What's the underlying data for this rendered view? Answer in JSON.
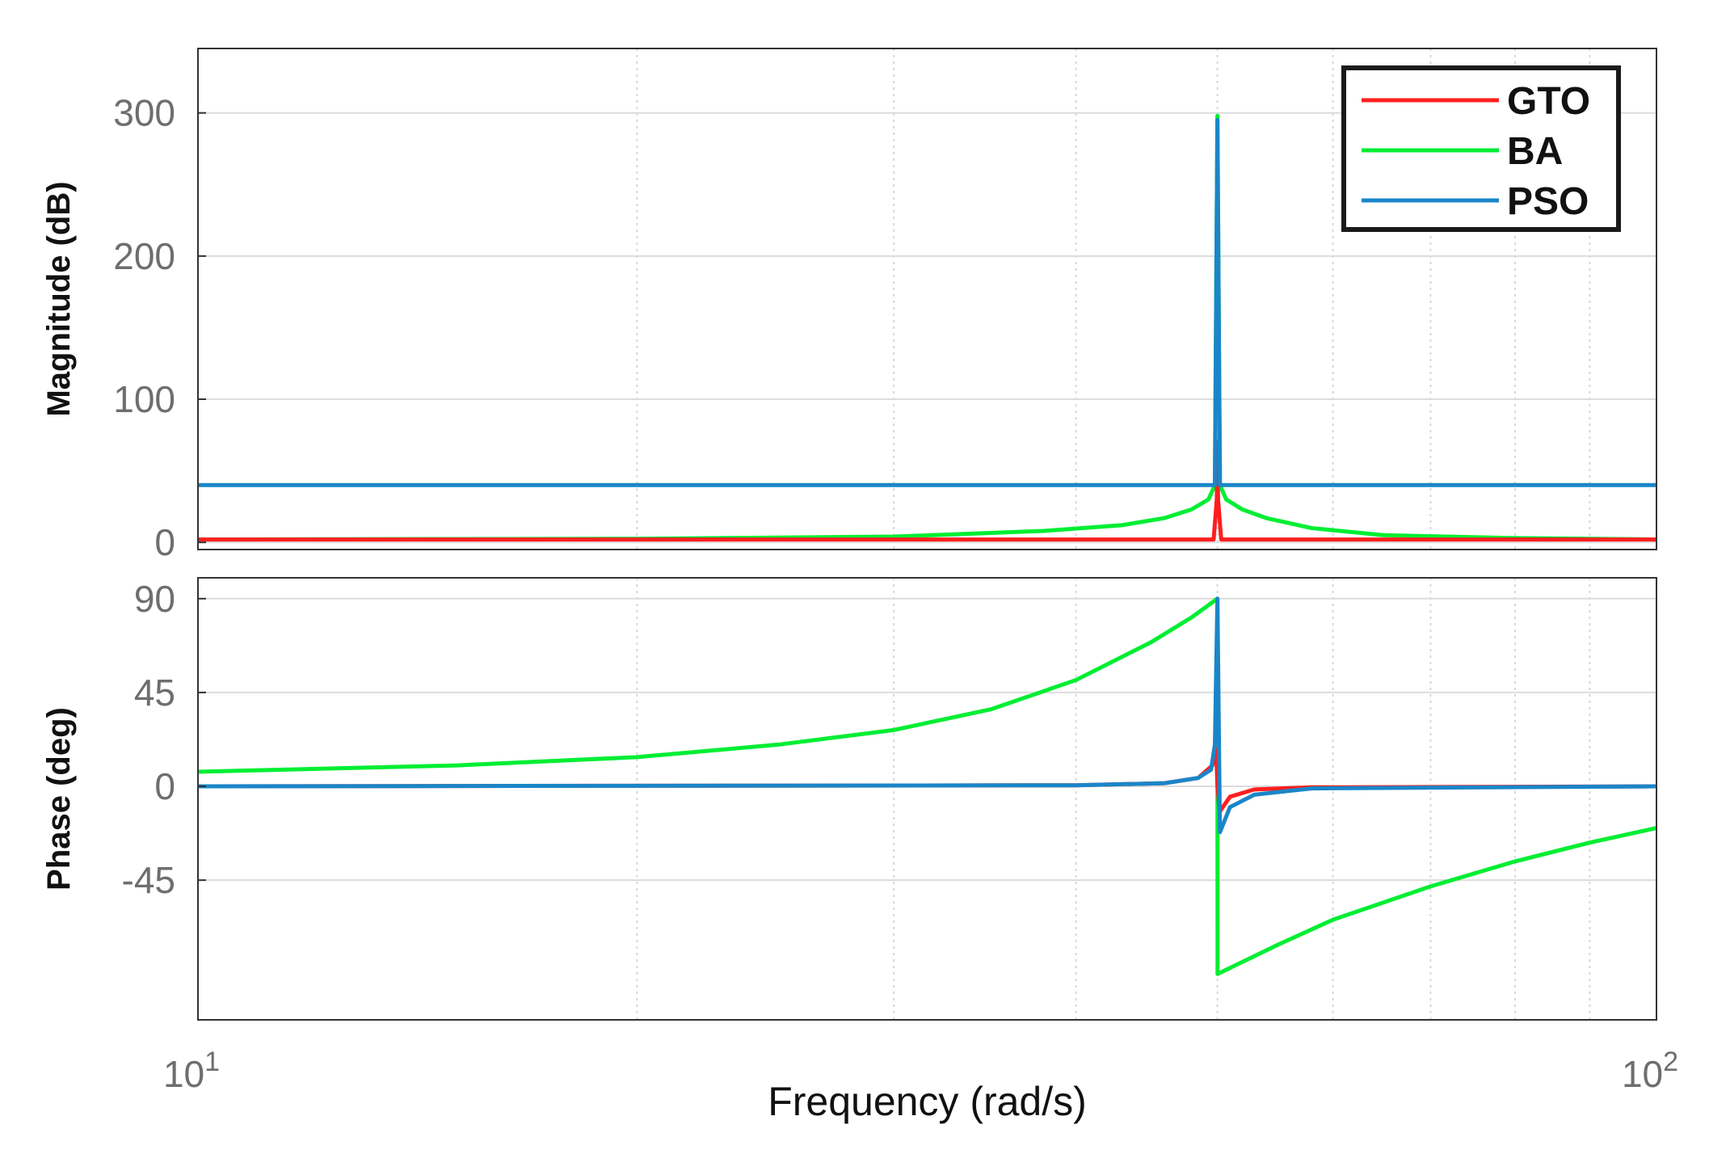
{
  "chart_data": {
    "type": "line",
    "title": "",
    "xlabel": "Frequency  (rad/s)",
    "xscale": "log",
    "xlim": [
      10,
      100
    ],
    "x_tick_labels": [
      {
        "base": "10",
        "exp": "1"
      },
      {
        "base": "10",
        "exp": "2"
      }
    ],
    "grid": true,
    "legend": {
      "placement": "top-right",
      "entries": [
        "GTO",
        "BA",
        "PSO"
      ]
    },
    "colors": {
      "GTO": "#ff1f1f",
      "BA": "#00ee33",
      "PSO": "#1a86c8"
    },
    "subplots": [
      {
        "name": "magnitude",
        "ylabel": "Magnitude (dB)",
        "ylim": [
          -5,
          345
        ],
        "yticks": [
          0,
          100,
          200,
          300
        ],
        "ytick_labels": [
          "0",
          "100",
          "200",
          "300"
        ],
        "series": [
          {
            "name": "GTO",
            "points": [
              [
                10,
                2
              ],
              [
                40,
                2
              ],
              [
                49.7,
                2
              ],
              [
                49.95,
                30
              ],
              [
                50,
                70
              ],
              [
                50.05,
                30
              ],
              [
                50.3,
                2
              ],
              [
                60,
                2
              ],
              [
                100,
                2
              ]
            ]
          },
          {
            "name": "BA",
            "points": [
              [
                10,
                2
              ],
              [
                20,
                2.5
              ],
              [
                30,
                4
              ],
              [
                38,
                8
              ],
              [
                43,
                12
              ],
              [
                46,
                17
              ],
              [
                48,
                23
              ],
              [
                49.3,
                30
              ],
              [
                49.8,
                40
              ],
              [
                50,
                298
              ],
              [
                50.2,
                40
              ],
              [
                50.7,
                30
              ],
              [
                52,
                23
              ],
              [
                54,
                17
              ],
              [
                58,
                10
              ],
              [
                65,
                5
              ],
              [
                80,
                3
              ],
              [
                100,
                2
              ]
            ]
          },
          {
            "name": "PSO",
            "points": [
              [
                10,
                40
              ],
              [
                49.8,
                40
              ],
              [
                50,
                295
              ],
              [
                50.2,
                40
              ],
              [
                100,
                40
              ]
            ]
          }
        ]
      },
      {
        "name": "phase",
        "ylabel": "Phase (deg)",
        "ylim": [
          -112,
          100
        ],
        "yticks": [
          90,
          45,
          0,
          -45
        ],
        "ytick_labels": [
          "90",
          "45",
          "0",
          "-45"
        ],
        "series": [
          {
            "name": "GTO",
            "points": [
              [
                10,
                0
              ],
              [
                40,
                0.5
              ],
              [
                46,
                1.5
              ],
              [
                48.5,
                4
              ],
              [
                49.6,
                10
              ],
              [
                49.9,
                18
              ],
              [
                50,
                0
              ],
              [
                50.2,
                -12
              ],
              [
                51,
                -5
              ],
              [
                53,
                -1.5
              ],
              [
                58,
                -0.5
              ],
              [
                100,
                0
              ]
            ]
          },
          {
            "name": "BA",
            "points": [
              [
                10,
                7
              ],
              [
                15,
                10
              ],
              [
                20,
                14
              ],
              [
                25,
                20
              ],
              [
                30,
                27
              ],
              [
                35,
                37
              ],
              [
                40,
                51
              ],
              [
                45,
                69
              ],
              [
                48,
                81
              ],
              [
                50,
                90
              ],
              [
                50.01,
                -90
              ],
              [
                55,
                -76
              ],
              [
                60,
                -64
              ],
              [
                70,
                -48
              ],
              [
                80,
                -36
              ],
              [
                90,
                -27
              ],
              [
                100,
                -20
              ]
            ]
          },
          {
            "name": "PSO",
            "points": [
              [
                10,
                0
              ],
              [
                40,
                0.5
              ],
              [
                46,
                1.5
              ],
              [
                48.5,
                4
              ],
              [
                49.5,
                8
              ],
              [
                49.8,
                20
              ],
              [
                50,
                90
              ],
              [
                50.2,
                -22
              ],
              [
                51,
                -10
              ],
              [
                53,
                -4
              ],
              [
                58,
                -1
              ],
              [
                100,
                0
              ]
            ]
          }
        ]
      }
    ]
  }
}
